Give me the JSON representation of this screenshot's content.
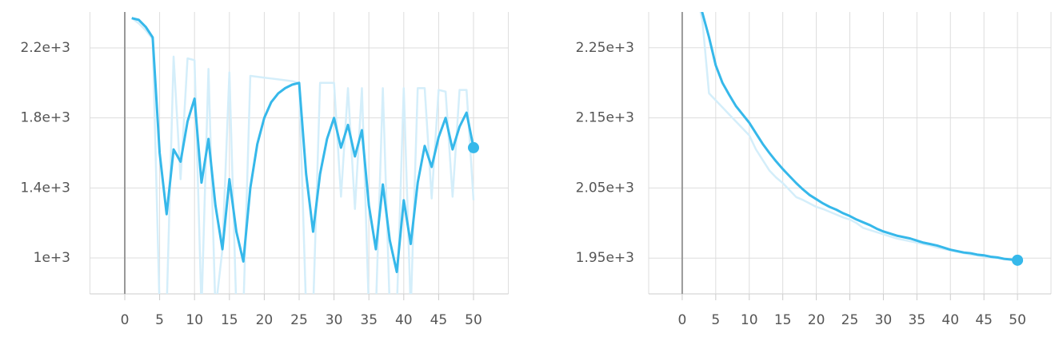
{
  "chart_data": [
    {
      "type": "line",
      "x": [
        1,
        2,
        3,
        4,
        5,
        6,
        7,
        8,
        9,
        10,
        11,
        12,
        13,
        14,
        15,
        16,
        17,
        18,
        19,
        20,
        21,
        22,
        23,
        24,
        25,
        26,
        27,
        28,
        29,
        30,
        31,
        32,
        33,
        34,
        35,
        36,
        37,
        38,
        39,
        40,
        41,
        42,
        43,
        44,
        45,
        46,
        47,
        48,
        49,
        50
      ],
      "series": [
        {
          "color": "#d4eefa",
          "values": [
            2370,
            2340,
            2300,
            2250,
            700,
            700,
            2150,
            1450,
            2140,
            2130,
            700,
            2080,
            700,
            1050,
            2060,
            700,
            700,
            2040,
            2035,
            2030,
            2025,
            2020,
            2015,
            2010,
            2000,
            700,
            700,
            2000,
            2000,
            2000,
            1350,
            1970,
            1280,
            1970,
            700,
            700,
            1970,
            700,
            700,
            1970,
            700,
            1970,
            1970,
            1340,
            1960,
            1950,
            1350,
            1960,
            1960,
            1330
          ]
        },
        {
          "color": "#36b8ea",
          "values": [
            2370,
            2360,
            2320,
            2260,
            1600,
            1250,
            1620,
            1550,
            1780,
            1910,
            1430,
            1680,
            1300,
            1050,
            1450,
            1150,
            980,
            1400,
            1650,
            1800,
            1890,
            1940,
            1970,
            1990,
            2000,
            1480,
            1150,
            1480,
            1680,
            1800,
            1630,
            1760,
            1580,
            1730,
            1300,
            1050,
            1420,
            1100,
            920,
            1330,
            1080,
            1430,
            1640,
            1520,
            1690,
            1800,
            1620,
            1750,
            1830,
            1630
          ]
        }
      ],
      "xlim": [
        -5,
        55
      ],
      "xticks": [
        0,
        5,
        10,
        15,
        20,
        25,
        30,
        35,
        40,
        45,
        50
      ],
      "ylim": [
        795,
        2405
      ],
      "yticks": [
        {
          "value": 1000,
          "label": "1e+3"
        },
        {
          "value": 1400,
          "label": "1.4e+3"
        },
        {
          "value": 1800,
          "label": "1.8e+3"
        },
        {
          "value": 2200,
          "label": "2.2e+3"
        }
      ]
    },
    {
      "type": "line",
      "x": [
        1,
        2,
        3,
        4,
        5,
        6,
        7,
        8,
        9,
        10,
        11,
        12,
        13,
        14,
        15,
        16,
        17,
        18,
        19,
        20,
        21,
        22,
        23,
        24,
        25,
        26,
        27,
        28,
        29,
        30,
        31,
        32,
        33,
        34,
        35,
        36,
        37,
        38,
        39,
        40,
        41,
        42,
        43,
        44,
        45,
        46,
        47,
        48,
        49,
        50
      ],
      "series": [
        {
          "color": "#d4eefa",
          "values": [
            2400,
            2330,
            2290,
            2185,
            2175,
            2165,
            2155,
            2145,
            2135,
            2125,
            2105,
            2090,
            2075,
            2065,
            2057,
            2047,
            2037,
            2033,
            2028,
            2023,
            2020,
            2016,
            2012,
            2008,
            2005,
            2000,
            1993,
            1990,
            1987,
            1984,
            1981,
            1978,
            1976,
            1974,
            1972,
            1970,
            1968,
            1965,
            1963,
            1961,
            1959,
            1957,
            1955,
            1954,
            1952,
            1951,
            1950,
            1949,
            1948,
            1946
          ]
        },
        {
          "color": "#36b8ea",
          "values": [
            2400,
            2340,
            2300,
            2265,
            2225,
            2200,
            2183,
            2167,
            2155,
            2143,
            2128,
            2113,
            2100,
            2088,
            2077,
            2067,
            2057,
            2048,
            2040,
            2034,
            2028,
            2023,
            2019,
            2014,
            2010,
            2005,
            2001,
            1997,
            1992,
            1988,
            1985,
            1982,
            1980,
            1978,
            1975,
            1972,
            1970,
            1968,
            1965,
            1962,
            1960,
            1958,
            1957,
            1955,
            1954,
            1952,
            1951,
            1949,
            1948,
            1947
          ]
        }
      ],
      "xlim": [
        -5,
        55
      ],
      "xticks": [
        0,
        5,
        10,
        15,
        20,
        25,
        30,
        35,
        40,
        45,
        50
      ],
      "ylim": [
        1899,
        2301
      ],
      "yticks": [
        {
          "value": 1950,
          "label": "1.95e+3"
        },
        {
          "value": 2050,
          "label": "2.05e+3"
        },
        {
          "value": 2150,
          "label": "2.15e+3"
        },
        {
          "value": 2250,
          "label": "2.25e+3"
        }
      ]
    }
  ]
}
